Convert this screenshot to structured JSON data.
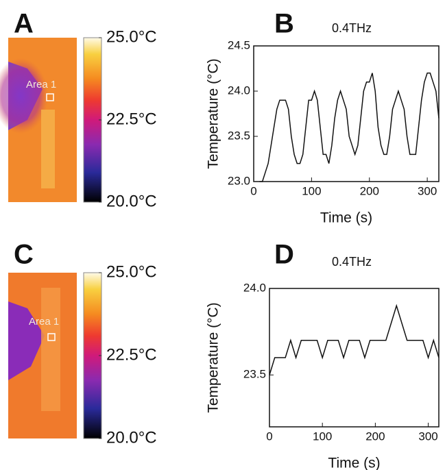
{
  "images": [
    {
      "letter": "A",
      "area_label": "Area 1",
      "colorbar_ticks": [
        {
          "value": 25,
          "label": "25.0°C"
        },
        {
          "value": 22.5,
          "label": "22.5°C"
        },
        {
          "value": 20,
          "label": "20.0°C"
        }
      ]
    },
    {
      "letter": "C",
      "area_label": "Area 1",
      "colorbar_ticks": [
        {
          "value": 25,
          "label": "25.0°C"
        },
        {
          "value": 22.5,
          "label": "22.5°C"
        },
        {
          "value": 20,
          "label": "20.0°C"
        }
      ]
    }
  ],
  "chart_data": [
    {
      "type": "line",
      "panel_label": "B",
      "title": "0.4THz",
      "x_label": "Time (s)",
      "y_label": "Temperature (°C)",
      "color": "#111111",
      "x": [
        10,
        15,
        20,
        25,
        30,
        35,
        40,
        45,
        50,
        55,
        60,
        65,
        70,
        75,
        80,
        85,
        90,
        95,
        100,
        105,
        110,
        115,
        120,
        125,
        130,
        135,
        140,
        145,
        150,
        155,
        160,
        165,
        170,
        175,
        180,
        185,
        190,
        195,
        200,
        205,
        210,
        215,
        220,
        225,
        230,
        235,
        240,
        245,
        250,
        255,
        260,
        265,
        270,
        275,
        280,
        285,
        290,
        295,
        300,
        305,
        310,
        315,
        320
      ],
      "y": [
        23.0,
        23.0,
        23.1,
        23.2,
        23.4,
        23.6,
        23.8,
        23.9,
        23.9,
        23.9,
        23.8,
        23.5,
        23.3,
        23.2,
        23.2,
        23.3,
        23.6,
        23.9,
        23.9,
        24.0,
        23.9,
        23.6,
        23.3,
        23.3,
        23.2,
        23.4,
        23.7,
        23.9,
        24.0,
        23.9,
        23.8,
        23.5,
        23.4,
        23.3,
        23.4,
        23.7,
        24.0,
        24.1,
        24.1,
        24.2,
        24.0,
        23.6,
        23.4,
        23.3,
        23.3,
        23.5,
        23.8,
        23.9,
        24.0,
        23.9,
        23.8,
        23.5,
        23.3,
        23.3,
        23.3,
        23.6,
        23.9,
        24.1,
        24.2,
        24.2,
        24.1,
        24.0,
        23.7
      ],
      "xlim": [
        0,
        320
      ],
      "xticks": [
        0,
        100,
        200,
        300
      ],
      "ylim": [
        23,
        24.5
      ],
      "yticks": [
        {
          "value": 23,
          "label": "23.0"
        },
        23.5,
        {
          "value": 24,
          "label": "24.0"
        },
        24.5
      ]
    },
    {
      "type": "line",
      "panel_label": "D",
      "title": "0.4THz",
      "x_label": "Time (s)",
      "y_label": "Temperature (°C)",
      "color": "#111111",
      "x": [
        0,
        10,
        20,
        30,
        40,
        50,
        60,
        70,
        80,
        90,
        100,
        110,
        120,
        130,
        140,
        150,
        160,
        170,
        180,
        190,
        200,
        210,
        220,
        230,
        240,
        250,
        260,
        270,
        280,
        290,
        300,
        310,
        320
      ],
      "y": [
        23.5,
        23.6,
        23.6,
        23.6,
        23.7,
        23.6,
        23.7,
        23.7,
        23.7,
        23.7,
        23.6,
        23.7,
        23.7,
        23.7,
        23.6,
        23.7,
        23.7,
        23.7,
        23.6,
        23.7,
        23.7,
        23.7,
        23.7,
        23.8,
        23.9,
        23.8,
        23.7,
        23.7,
        23.7,
        23.7,
        23.6,
        23.7,
        23.6
      ],
      "xlim": [
        0,
        320
      ],
      "xticks": [
        0,
        100,
        200,
        300
      ],
      "ylim": [
        23.2,
        24.0
      ],
      "yticks": [
        23.5,
        {
          "value": 24,
          "label": "24.0"
        }
      ]
    }
  ]
}
